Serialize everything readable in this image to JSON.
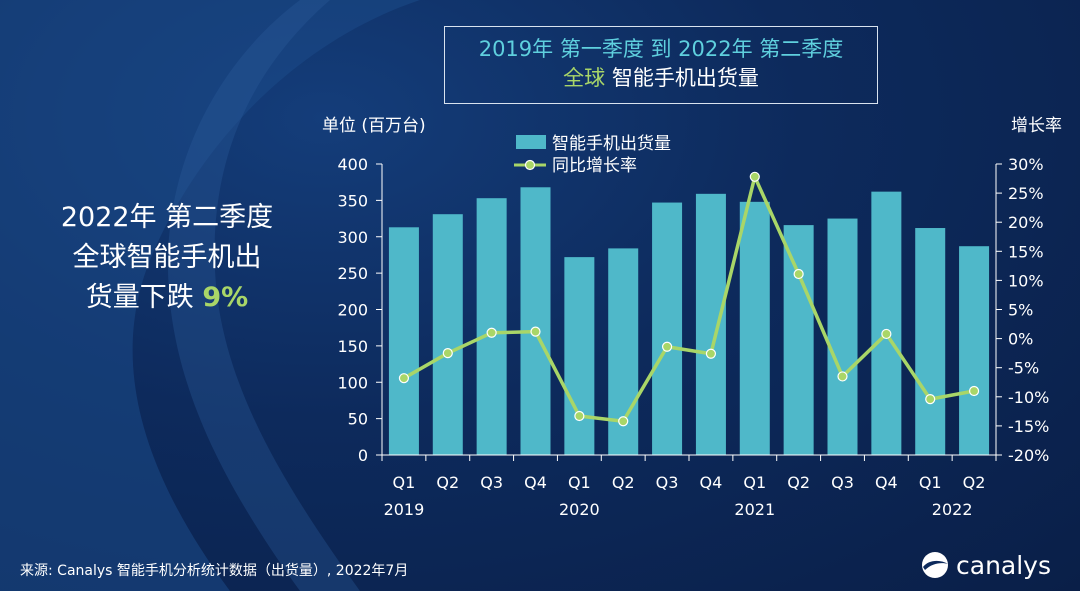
{
  "title": {
    "line1": "2019年 第一季度 到 2022年 第二季度",
    "line2_accent": "全球",
    "line2_rest": " 智能手机出货量"
  },
  "headline": {
    "line1": "2022年 第二季度",
    "line2": "全球智能手机出",
    "line3": "货量下跌 ",
    "highlight": "9%"
  },
  "source": "来源: Canalys 智能手机分析统计数据（出货量）, 2022年7月",
  "logo": {
    "text": "canalys",
    "icon": "canalys-logo-icon"
  },
  "colors": {
    "bar": "#4fb8c9",
    "line": "#a9d668",
    "accent_green": "#a9d668",
    "title_teal": "#5fd0de"
  },
  "chart_data": {
    "type": "bar+line",
    "title": "2019年 第一季度 到 2022年 第二季度 全球 智能手机出货量",
    "ylabel": "单位 (百万台)",
    "y2label": "增长率",
    "ylim": [
      0,
      400
    ],
    "yticks": [
      "0",
      "50",
      "100",
      "150",
      "200",
      "250",
      "300",
      "350",
      "400"
    ],
    "y2lim": [
      -20,
      30
    ],
    "y2ticks": [
      "-20%",
      "-15%",
      "-10%",
      "-5%",
      "0%",
      "5%",
      "10%",
      "15%",
      "20%",
      "25%",
      "30%"
    ],
    "categories": [
      "Q1",
      "Q2",
      "Q3",
      "Q4",
      "Q1",
      "Q2",
      "Q3",
      "Q4",
      "Q1",
      "Q2",
      "Q3",
      "Q4",
      "Q1",
      "Q2"
    ],
    "years": [
      {
        "label": "2019",
        "start": 0,
        "end": 0
      },
      {
        "label": "2020",
        "start": 4,
        "end": 4
      },
      {
        "label": "2021",
        "start": 8,
        "end": 8
      },
      {
        "label": "2022",
        "start": 12,
        "end": 13
      }
    ],
    "legend": [
      "智能手机出货量",
      "同比增长率"
    ],
    "series": [
      {
        "name": "智能手机出货量",
        "type": "bar",
        "axis": "left",
        "values": [
          313,
          331,
          353,
          368,
          272,
          284,
          347,
          359,
          348,
          316,
          325,
          362,
          312,
          287
        ]
      },
      {
        "name": "同比增长率",
        "type": "line",
        "axis": "right",
        "values": [
          -6.8,
          -2.5,
          1.0,
          1.2,
          -13.3,
          -14.2,
          -1.4,
          -2.6,
          27.8,
          11.1,
          -6.5,
          0.8,
          -10.4,
          -9.0
        ]
      }
    ]
  }
}
